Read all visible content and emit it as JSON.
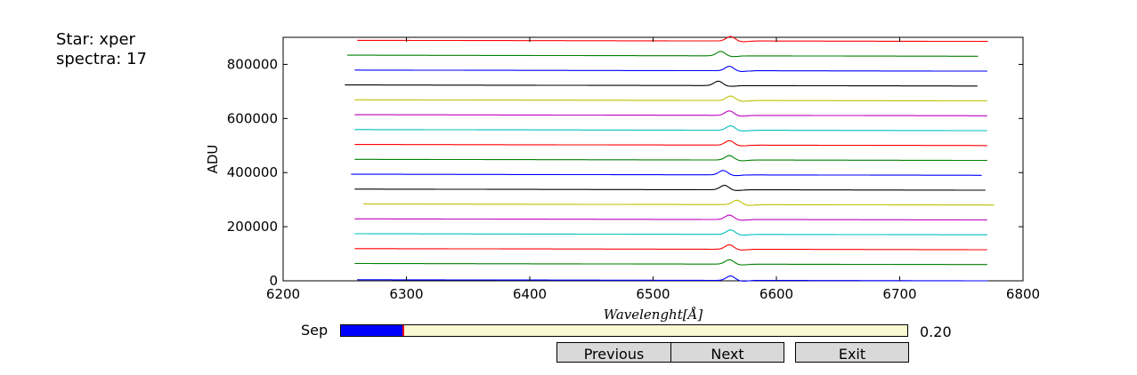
{
  "info": {
    "star": "Star: xper",
    "spectra": "spectra: 17"
  },
  "chart_data": {
    "type": "line",
    "title": "",
    "xlabel": "Wavelenght[Å]",
    "ylabel": "ADU",
    "xlim": [
      6200,
      6800
    ],
    "ylim": [
      0,
      900000
    ],
    "xticks": [
      "6200",
      "6300",
      "6400",
      "6500",
      "6600",
      "6700",
      "6800"
    ],
    "yticks": [
      "0",
      "200000",
      "400000",
      "600000",
      "800000"
    ],
    "grid": false,
    "series": [
      {
        "offset": 0,
        "x_start": 6260,
        "x_end": 6772,
        "peak_x": 6563,
        "color": "#0000ff"
      },
      {
        "offset": 60000,
        "x_start": 6258,
        "x_end": 6772,
        "peak_x": 6562,
        "color": "#008000"
      },
      {
        "offset": 115000,
        "x_start": 6258,
        "x_end": 6772,
        "peak_x": 6562,
        "color": "#ff0000"
      },
      {
        "offset": 170000,
        "x_start": 6258,
        "x_end": 6772,
        "peak_x": 6563,
        "color": "#00bfbf"
      },
      {
        "offset": 225000,
        "x_start": 6258,
        "x_end": 6772,
        "peak_x": 6562,
        "color": "#bf00bf"
      },
      {
        "offset": 280000,
        "x_start": 6265,
        "x_end": 6777,
        "peak_x": 6568,
        "color": "#bfbf00"
      },
      {
        "offset": 335000,
        "x_start": 6258,
        "x_end": 6770,
        "peak_x": 6558,
        "color": "#000000"
      },
      {
        "offset": 390000,
        "x_start": 6255,
        "x_end": 6767,
        "peak_x": 6557,
        "color": "#0000ff"
      },
      {
        "offset": 445000,
        "x_start": 6258,
        "x_end": 6772,
        "peak_x": 6562,
        "color": "#008000"
      },
      {
        "offset": 500000,
        "x_start": 6258,
        "x_end": 6772,
        "peak_x": 6562,
        "color": "#ff0000"
      },
      {
        "offset": 555000,
        "x_start": 6258,
        "x_end": 6772,
        "peak_x": 6563,
        "color": "#00bfbf"
      },
      {
        "offset": 610000,
        "x_start": 6258,
        "x_end": 6772,
        "peak_x": 6562,
        "color": "#bf00bf"
      },
      {
        "offset": 665000,
        "x_start": 6258,
        "x_end": 6772,
        "peak_x": 6563,
        "color": "#bfbf00"
      },
      {
        "offset": 720000,
        "x_start": 6250,
        "x_end": 6764,
        "peak_x": 6553,
        "color": "#000000"
      },
      {
        "offset": 775000,
        "x_start": 6258,
        "x_end": 6772,
        "peak_x": 6562,
        "color": "#0000ff"
      },
      {
        "offset": 830000,
        "x_start": 6252,
        "x_end": 6764,
        "peak_x": 6555,
        "color": "#008000"
      },
      {
        "offset": 885000,
        "x_start": 6260,
        "x_end": 6772,
        "peak_x": 6563,
        "color": "#ff0000"
      }
    ]
  },
  "slider": {
    "label": "Sep",
    "value_text": "0.20",
    "fraction": 0.11,
    "fill_color": "#0000ff",
    "track_color": "#fafad2"
  },
  "buttons": {
    "previous": "Previous",
    "next": "Next",
    "exit": "Exit"
  }
}
